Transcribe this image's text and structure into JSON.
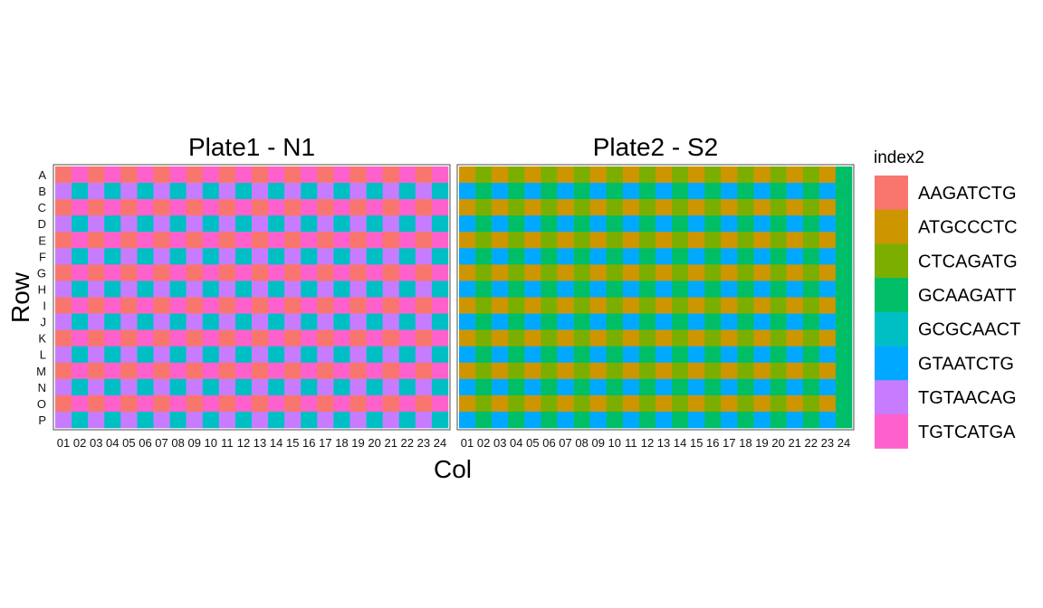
{
  "chart_data": {
    "type": "heatmap",
    "xlabel": "Col",
    "ylabel": "Row",
    "rows": [
      "A",
      "B",
      "C",
      "D",
      "E",
      "F",
      "G",
      "H",
      "I",
      "J",
      "K",
      "L",
      "M",
      "N",
      "O",
      "P"
    ],
    "cols": [
      "01",
      "02",
      "03",
      "04",
      "05",
      "06",
      "07",
      "08",
      "09",
      "10",
      "11",
      "12",
      "13",
      "14",
      "15",
      "16",
      "17",
      "18",
      "19",
      "20",
      "21",
      "22",
      "23",
      "24"
    ],
    "legend": {
      "title": "index2",
      "placement": "right",
      "items": [
        {
          "label": "AAGATCTG",
          "color": "#F8766D"
        },
        {
          "label": "ATGCCCTC",
          "color": "#CD9600"
        },
        {
          "label": "CTCAGATG",
          "color": "#7CAE00"
        },
        {
          "label": "GCAAGATT",
          "color": "#00BE67"
        },
        {
          "label": "GCGCAACT",
          "color": "#00BFC4"
        },
        {
          "label": "GTAATCTG",
          "color": "#00A9FF"
        },
        {
          "label": "TGTAACAG",
          "color": "#C77CFF"
        },
        {
          "label": "TGTCATGA",
          "color": "#FF61CC"
        }
      ]
    },
    "facets": [
      {
        "title": "Plate1 - N1",
        "pattern": {
          "odd_row": [
            "AAGATCTG",
            "TGTCATGA"
          ],
          "even_row": [
            "TGTAACAG",
            "GCGCAACT"
          ]
        }
      },
      {
        "title": "Plate2 - S2",
        "pattern": {
          "odd_row": [
            "ATGCCCTC",
            "CTCAGATG",
            "ATGCCCTC",
            "CTCAGATG",
            "ATGCCCTC",
            "CTCAGATG",
            "ATGCCCTC",
            "CTCAGATG",
            "ATGCCCTC",
            "CTCAGATG",
            "ATGCCCTC",
            "CTCAGATG",
            "ATGCCCTC",
            "CTCAGATG",
            "ATGCCCTC",
            "CTCAGATG",
            "ATGCCCTC",
            "CTCAGATG",
            "ATGCCCTC",
            "CTCAGATG",
            "ATGCCCTC",
            "CTCAGATG",
            "ATGCCCTC",
            "GCAAGATT"
          ],
          "even_row": [
            "GTAATCTG",
            "GCAAGATT",
            "GTAATCTG",
            "GCAAGATT",
            "GTAATCTG",
            "GCAAGATT",
            "GTAATCTG",
            "GCAAGATT",
            "GTAATCTG",
            "GCAAGATT",
            "GTAATCTG",
            "GCAAGATT",
            "GTAATCTG",
            "GCAAGATT",
            "GTAATCTG",
            "GCAAGATT",
            "GTAATCTG",
            "GCAAGATT",
            "GTAATCTG",
            "GCAAGATT",
            "GTAATCTG",
            "GCAAGATT",
            "GTAATCTG",
            "GCAAGATT"
          ]
        }
      }
    ]
  }
}
